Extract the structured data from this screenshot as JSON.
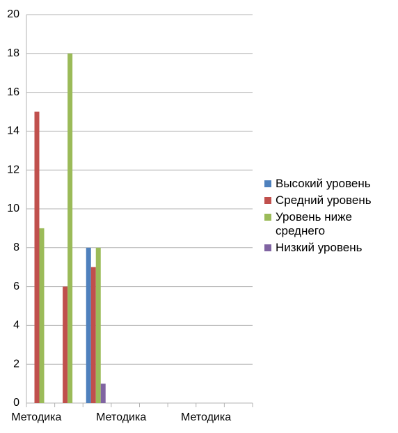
{
  "chart_data": {
    "type": "bar",
    "categories": [
      "Методика",
      null,
      null,
      "Методика",
      null,
      null,
      "Методика",
      null
    ],
    "series": [
      {
        "name": "Высокий уровень",
        "color": "#4f81bd",
        "values": [
          0,
          0,
          8,
          0,
          0,
          0,
          0,
          0
        ]
      },
      {
        "name": "Средний уровень",
        "color": "#c0504d",
        "values": [
          15,
          6,
          7,
          0,
          0,
          0,
          0,
          0
        ]
      },
      {
        "name": "Уровень ниже среднего",
        "color": "#9bbb59",
        "values": [
          9,
          18,
          8,
          0,
          0,
          0,
          0,
          0
        ]
      },
      {
        "name": "Низкий уровень",
        "color": "#8064a2",
        "values": [
          0,
          0,
          1,
          0,
          0,
          0,
          0,
          0
        ]
      }
    ],
    "ylim": [
      0,
      20
    ],
    "yticks": [
      0,
      2,
      4,
      6,
      8,
      10,
      12,
      14,
      16,
      18,
      20
    ],
    "grid": true,
    "legend": "right"
  }
}
